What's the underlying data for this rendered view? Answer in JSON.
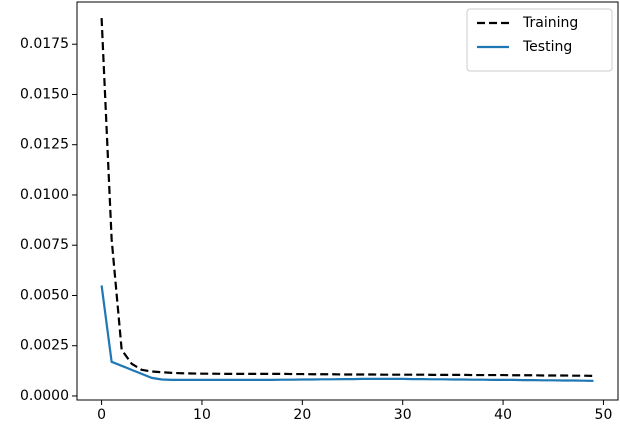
{
  "chart_data": {
    "type": "line",
    "x": [
      0,
      1,
      2,
      3,
      4,
      5,
      6,
      7,
      8,
      9,
      10,
      11,
      12,
      13,
      14,
      15,
      16,
      17,
      18,
      19,
      20,
      21,
      22,
      23,
      24,
      25,
      26,
      27,
      28,
      29,
      30,
      31,
      32,
      33,
      34,
      35,
      36,
      37,
      38,
      39,
      40,
      41,
      42,
      43,
      44,
      45,
      46,
      47,
      48,
      49
    ],
    "series": [
      {
        "name": "Training",
        "color": "#000000",
        "dash": true,
        "values": [
          0.0188,
          0.0078,
          0.0023,
          0.0016,
          0.0013,
          0.00122,
          0.00118,
          0.00115,
          0.00113,
          0.00112,
          0.00111,
          0.00111,
          0.0011,
          0.0011,
          0.0011,
          0.0011,
          0.0011,
          0.0011,
          0.0011,
          0.00109,
          0.00109,
          0.00108,
          0.00108,
          0.00108,
          0.00107,
          0.00107,
          0.00107,
          0.00107,
          0.00106,
          0.00106,
          0.00106,
          0.00106,
          0.00106,
          0.00105,
          0.00105,
          0.00105,
          0.00105,
          0.00104,
          0.00104,
          0.00104,
          0.00104,
          0.00103,
          0.00103,
          0.00103,
          0.00102,
          0.00102,
          0.00102,
          0.00101,
          0.00101,
          0.001
        ]
      },
      {
        "name": "Testing",
        "color": "#1f77b4",
        "dash": false,
        "values": [
          0.0055,
          0.0017,
          0.0015,
          0.0013,
          0.0011,
          0.0009,
          0.00082,
          0.0008,
          0.0008,
          0.0008,
          0.0008,
          0.0008,
          0.0008,
          0.0008,
          0.0008,
          0.0008,
          0.0008,
          0.0008,
          0.00081,
          0.00081,
          0.00082,
          0.00082,
          0.00083,
          0.00083,
          0.00084,
          0.00084,
          0.00085,
          0.00085,
          0.00085,
          0.00085,
          0.00085,
          0.00084,
          0.00084,
          0.00083,
          0.00083,
          0.00082,
          0.00082,
          0.00081,
          0.00081,
          0.0008,
          0.0008,
          0.0008,
          0.00079,
          0.00079,
          0.00078,
          0.00078,
          0.00077,
          0.00077,
          0.00076,
          0.00075
        ]
      }
    ],
    "xlim": [
      -2.45,
      51.45
    ],
    "xticks": [
      0,
      10,
      20,
      30,
      40,
      50
    ],
    "ylim": [
      -0.0002,
      0.0196
    ],
    "yticks": [
      {
        "value": 0,
        "label": "0.0000"
      },
      {
        "value": 0.0025,
        "label": "0.0025"
      },
      {
        "value": 0.005,
        "label": "0.0050"
      },
      {
        "value": 0.0075,
        "label": "0.0075"
      },
      {
        "value": 0.01,
        "label": "0.0100"
      },
      {
        "value": 0.0125,
        "label": "0.0125"
      },
      {
        "value": 0.015,
        "label": "0.0150"
      },
      {
        "value": 0.0175,
        "label": "0.0175"
      }
    ],
    "legend": "upper right"
  }
}
